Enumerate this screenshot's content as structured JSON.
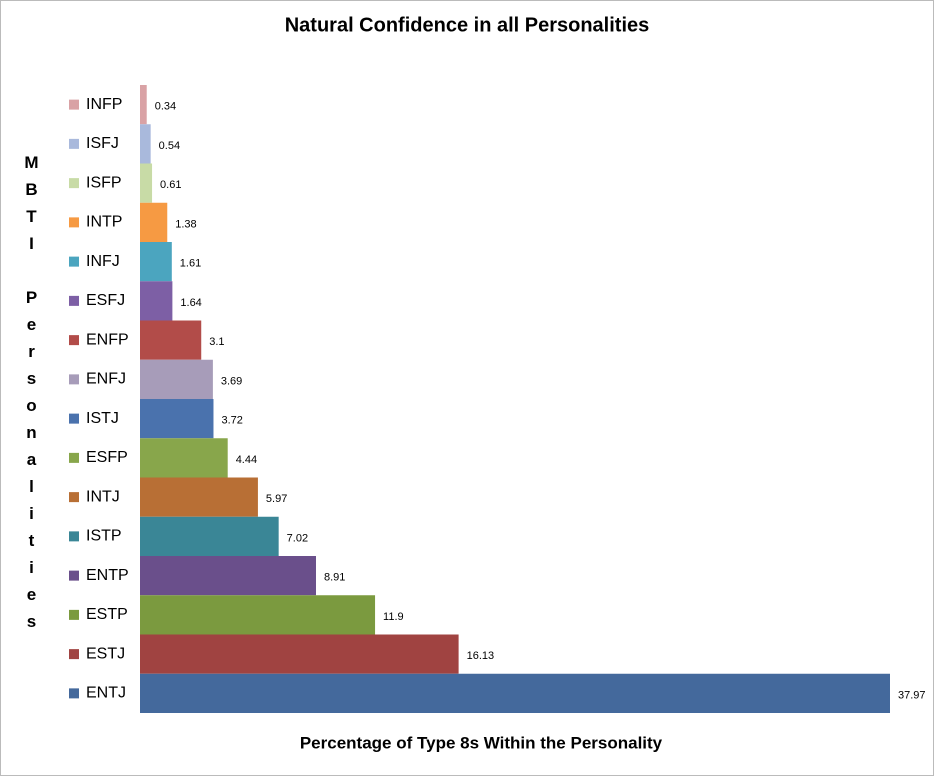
{
  "chart_data": {
    "type": "bar",
    "orientation": "horizontal",
    "title": "Natural Confidence in all Personalities",
    "x_label": "Percentage of Type 8s Within the Personality",
    "y_label": "MBTI Personalities",
    "categories": [
      "INFP",
      "ISFJ",
      "ISFP",
      "INTP",
      "INFJ",
      "ESFJ",
      "ENFP",
      "ENFJ",
      "ISTJ",
      "ESFP",
      "INTJ",
      "ISTP",
      "ENTP",
      "ESTP",
      "ESTJ",
      "ENTJ"
    ],
    "values": [
      0.34,
      0.54,
      0.61,
      1.38,
      1.61,
      1.64,
      3.1,
      3.69,
      3.72,
      4.44,
      5.97,
      7.02,
      8.91,
      11.9,
      16.13,
      37.97
    ],
    "colors": [
      "#d9a2a5",
      "#a9b9dc",
      "#c8dba6",
      "#f69a43",
      "#4ba5bf",
      "#7d5fa5",
      "#b24c49",
      "#a79cb9",
      "#4a72ad",
      "#88a64b",
      "#b86f35",
      "#3a8696",
      "#6a4f8b",
      "#7b9a3f",
      "#a04341",
      "#44699c"
    ],
    "show_value_labels": true
  }
}
